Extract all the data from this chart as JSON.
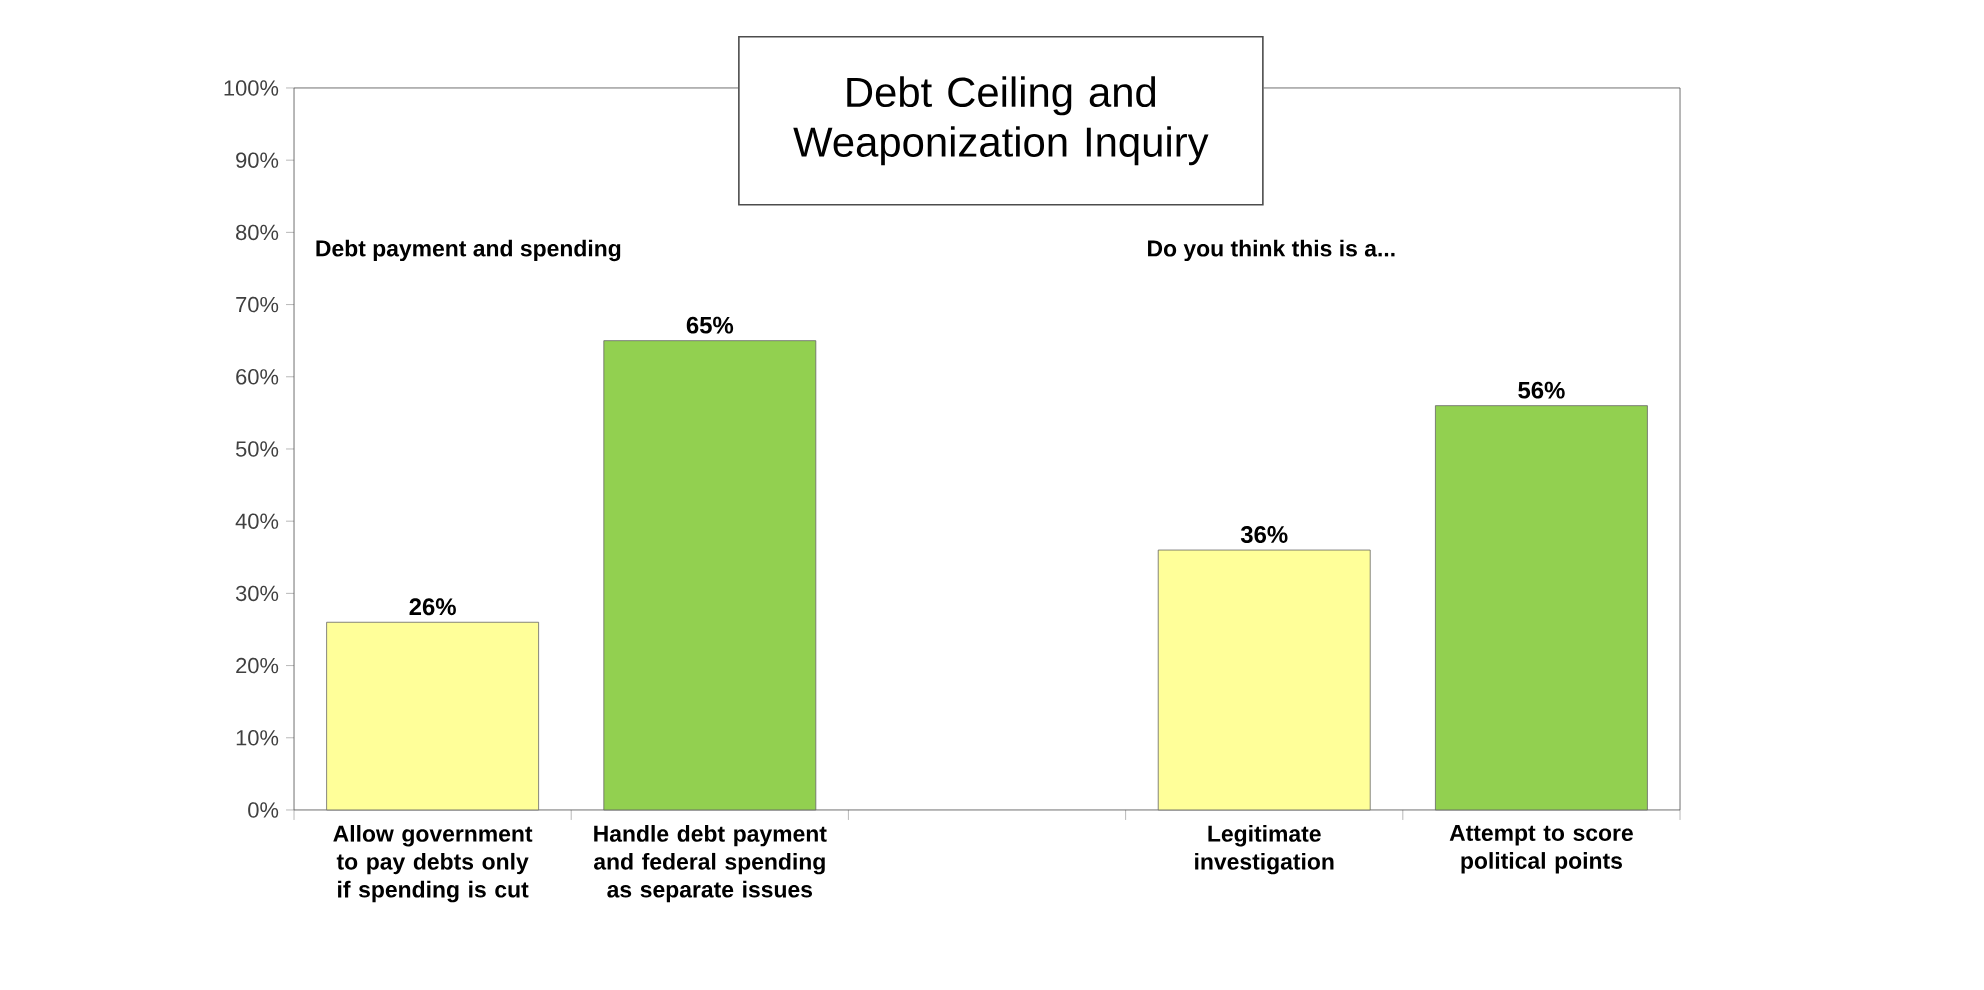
{
  "chart_data": {
    "type": "bar",
    "title": "Debt Ceiling and Weaponization Inquiry",
    "categories": [
      "Allow government to pay debts only if spending is cut",
      "Handle debt payment and federal spending as separate issues",
      null,
      "Legitimate investigation",
      "Attempt to score political points"
    ],
    "values": [
      26,
      65,
      null,
      36,
      56
    ],
    "colors": [
      "#ffff99",
      "#92d050",
      null,
      "#ffff99",
      "#92d050"
    ],
    "value_labels": [
      "26%",
      "65%",
      null,
      "36%",
      "56%"
    ],
    "ylim": [
      0,
      100
    ],
    "yticks": [
      {
        "value": 0,
        "label": "0%"
      },
      {
        "value": 10,
        "label": "10%"
      },
      {
        "value": 20,
        "label": "20%"
      },
      {
        "value": 30,
        "label": "30%"
      },
      {
        "value": 40,
        "label": "40%"
      },
      {
        "value": 50,
        "label": "50%"
      },
      {
        "value": 60,
        "label": "60%"
      },
      {
        "value": 70,
        "label": "70%"
      },
      {
        "value": 80,
        "label": "80%"
      },
      {
        "value": 90,
        "label": "90%"
      },
      {
        "value": 100,
        "label": "100%"
      }
    ],
    "annotations": [
      "Debt payment and spending",
      "Do you think this is a..."
    ],
    "grid": false
  }
}
